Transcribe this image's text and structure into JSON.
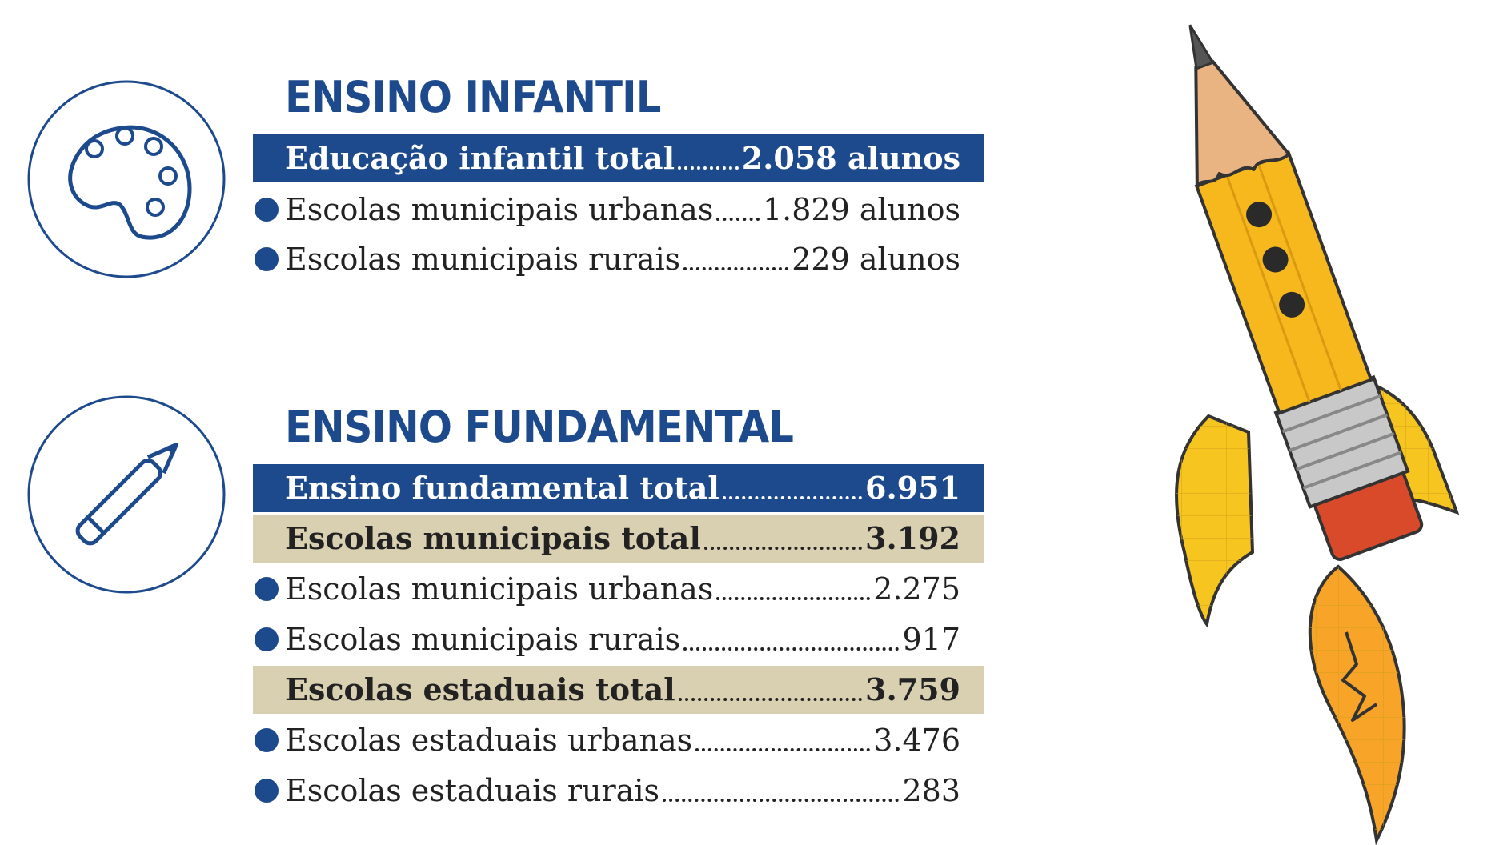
{
  "colors": {
    "navy": "#1c4a8c",
    "tan": "#d9d0b2",
    "text": "#222222"
  },
  "icons": {
    "palette": "palette-icon",
    "pencil": "pencil-icon",
    "rocket": "pencil-rocket-illustration"
  },
  "infantil": {
    "title": "ENSINO INFANTIL",
    "total": {
      "label": "Educação infantil total",
      "value": "2.058 alunos"
    },
    "items": [
      {
        "label": "Escolas municipais urbanas",
        "value": "1.829 alunos"
      },
      {
        "label": "Escolas municipais rurais",
        "value": "229 alunos"
      }
    ]
  },
  "fundamental": {
    "title": "ENSINO FUNDAMENTAL",
    "total": {
      "label": "Ensino fundamental total",
      "value": "6.951"
    },
    "municipais": {
      "total": {
        "label": "Escolas municipais total",
        "value": "3.192"
      },
      "items": [
        {
          "label": "Escolas municipais urbanas",
          "value": "2.275"
        },
        {
          "label": "Escolas municipais rurais",
          "value": "917"
        }
      ]
    },
    "estaduais": {
      "total": {
        "label": "Escolas estaduais total",
        "value": "3.759"
      },
      "items": [
        {
          "label": "Escolas estaduais urbanas",
          "value": "3.476"
        },
        {
          "label": "Escolas estaduais rurais",
          "value": "283"
        }
      ]
    }
  }
}
